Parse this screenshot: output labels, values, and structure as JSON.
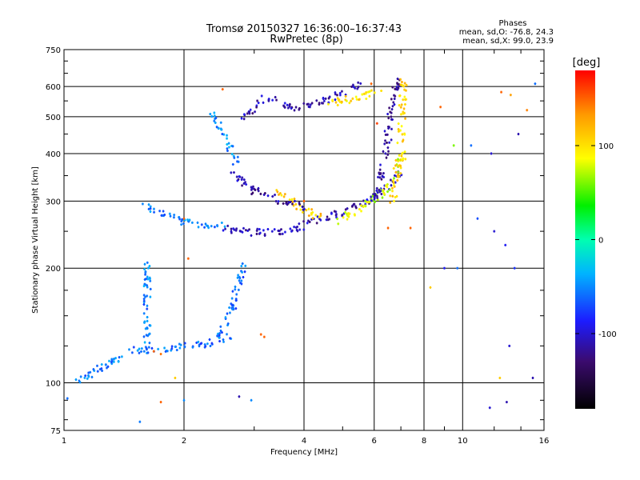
{
  "chart_data": {
    "type": "scatter",
    "title": "Tromsø 20150327 16:36:00–16:37:43",
    "subtitle": "RwPretec (8p)",
    "xlabel": "Frequency [MHz]",
    "ylabel": "Stationary phase Virtual Height [km]",
    "x_scale": "log",
    "y_scale": "log",
    "xlim": [
      1,
      16
    ],
    "ylim": [
      75,
      750
    ],
    "x_ticks": [
      1,
      2,
      4,
      6,
      8,
      10,
      16
    ],
    "x_tick_labels": [
      "1",
      "2",
      "4",
      "6",
      "8",
      "10",
      "16"
    ],
    "y_ticks": [
      75,
      100,
      200,
      300,
      400,
      500,
      600,
      750
    ],
    "y_tick_labels": [
      "75",
      "100",
      "200",
      "300",
      "400",
      "500",
      "600",
      "750"
    ],
    "grid": true,
    "phase_stats": {
      "heading": "Phases",
      "line_o": "mean, sd,O: -76.8, 24.3",
      "line_x": "mean, sd,X:  99.0, 23.9"
    },
    "colorbar": {
      "label": "[deg]",
      "range": [
        -180,
        180
      ],
      "tick_values": [
        100,
        0,
        -100
      ],
      "tick_labels": [
        "100",
        "0",
        "-100"
      ]
    },
    "traces": [
      {
        "x": [
          1.05,
          1.5
        ],
        "y": [
          100,
          122
        ],
        "phase": -55
      },
      {
        "x": [
          1.5,
          1.72,
          1.95,
          2.25,
          2.6
        ],
        "y": [
          122,
          122,
          124,
          126,
          132
        ],
        "phase": -60
      },
      {
        "x": [
          1.62,
          1.62
        ],
        "y": [
          122,
          210
        ],
        "phase": -55
      },
      {
        "x": [
          2.4,
          2.65,
          2.85
        ],
        "y": [
          130,
          160,
          210
        ],
        "phase": -58
      },
      {
        "x": [
          1.6,
          2.0,
          2.5
        ],
        "y": [
          290,
          265,
          258
        ],
        "phase": -55
      },
      {
        "x": [
          2.5,
          2.9,
          3.3,
          3.8,
          4.3,
          5.0,
          5.8,
          6.5,
          7.0
        ],
        "y": [
          256,
          248,
          248,
          255,
          265,
          280,
          300,
          330,
          360
        ],
        "phase": -108
      },
      {
        "x": [
          4.8,
          5.5,
          6.2,
          6.8,
          7.1
        ],
        "y": [
          265,
          285,
          310,
          350,
          400
        ],
        "phase": 80
      },
      {
        "x": [
          3.4,
          3.9,
          4.4
        ],
        "y": [
          320,
          290,
          270
        ],
        "phase": 110
      },
      {
        "x": [
          6.0,
          6.4,
          6.6,
          6.8,
          7.0
        ],
        "y": [
          300,
          400,
          500,
          600,
          640
        ],
        "phase": -115
      },
      {
        "x": [
          6.7,
          7.0,
          7.1
        ],
        "y": [
          300,
          420,
          620
        ],
        "phase": 105
      },
      {
        "x": [
          2.8,
          3.2,
          3.8,
          4.5,
          5.5
        ],
        "y": [
          500,
          560,
          530,
          550,
          610
        ],
        "phase": -110
      },
      {
        "x": [
          2.3,
          2.5,
          2.7
        ],
        "y": [
          520,
          460,
          380
        ],
        "phase": -50
      },
      {
        "x": [
          2.6,
          3.0,
          3.5,
          4.0
        ],
        "y": [
          360,
          320,
          300,
          290
        ],
        "phase": -112
      },
      {
        "x": [
          4.5,
          5.5,
          6.2
        ],
        "y": [
          540,
          560,
          590
        ],
        "phase": 100
      }
    ],
    "points": [
      {
        "x": 3.12,
        "y": 134,
        "phase": 150
      },
      {
        "x": 3.18,
        "y": 132,
        "phase": 150
      },
      {
        "x": 1.68,
        "y": 121,
        "phase": 150
      },
      {
        "x": 1.75,
        "y": 119,
        "phase": 145
      },
      {
        "x": 4.0,
        "y": 300,
        "phase": 150
      },
      {
        "x": 5.9,
        "y": 610,
        "phase": 150
      },
      {
        "x": 6.1,
        "y": 480,
        "phase": 160
      },
      {
        "x": 2.5,
        "y": 590,
        "phase": 150
      },
      {
        "x": 8.8,
        "y": 530,
        "phase": 150
      },
      {
        "x": 12.5,
        "y": 580,
        "phase": 150
      },
      {
        "x": 13.2,
        "y": 570,
        "phase": 130
      },
      {
        "x": 14.5,
        "y": 520,
        "phase": 140
      },
      {
        "x": 15.2,
        "y": 610,
        "phase": -60
      },
      {
        "x": 13.8,
        "y": 450,
        "phase": -110
      },
      {
        "x": 11.8,
        "y": 400,
        "phase": -100
      },
      {
        "x": 10.5,
        "y": 420,
        "phase": -60
      },
      {
        "x": 9.5,
        "y": 420,
        "phase": 60
      },
      {
        "x": 10.9,
        "y": 270,
        "phase": -70
      },
      {
        "x": 12.0,
        "y": 250,
        "phase": -100
      },
      {
        "x": 12.8,
        "y": 230,
        "phase": -90
      },
      {
        "x": 13.5,
        "y": 200,
        "phase": -80
      },
      {
        "x": 9.7,
        "y": 200,
        "phase": -60
      },
      {
        "x": 13.1,
        "y": 125,
        "phase": -100
      },
      {
        "x": 15.0,
        "y": 103,
        "phase": -110
      },
      {
        "x": 12.4,
        "y": 103,
        "phase": 110
      },
      {
        "x": 12.9,
        "y": 89,
        "phase": -110
      },
      {
        "x": 11.7,
        "y": 86,
        "phase": -100
      },
      {
        "x": 8.3,
        "y": 178,
        "phase": 110
      },
      {
        "x": 6.5,
        "y": 255,
        "phase": 150
      },
      {
        "x": 7.4,
        "y": 255,
        "phase": 150
      },
      {
        "x": 9.0,
        "y": 200,
        "phase": -90
      },
      {
        "x": 2.75,
        "y": 92,
        "phase": -110
      },
      {
        "x": 2.95,
        "y": 90,
        "phase": -50
      },
      {
        "x": 2.0,
        "y": 90,
        "phase": -50
      },
      {
        "x": 1.02,
        "y": 91,
        "phase": -60
      },
      {
        "x": 1.55,
        "y": 79,
        "phase": -55
      },
      {
        "x": 1.75,
        "y": 89,
        "phase": 150
      },
      {
        "x": 1.9,
        "y": 103,
        "phase": 110
      },
      {
        "x": 2.05,
        "y": 212,
        "phase": 150
      },
      {
        "x": 2.0,
        "y": 270,
        "phase": 150
      }
    ]
  }
}
